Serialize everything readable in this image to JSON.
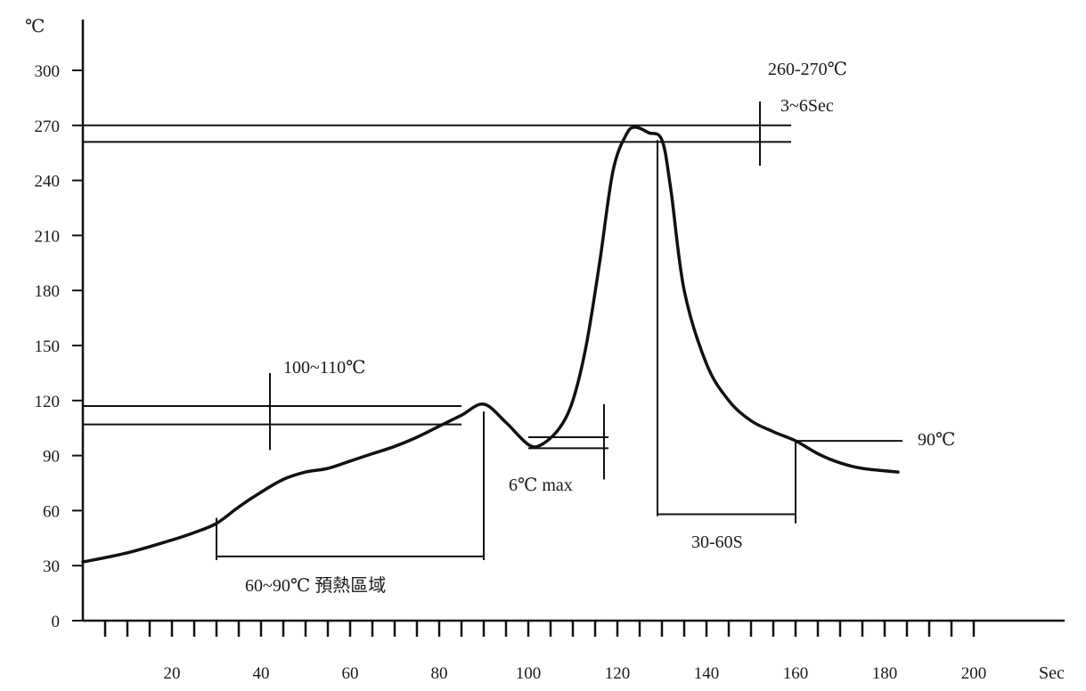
{
  "chart_data": {
    "type": "line",
    "title": "",
    "xlabel": "Sec",
    "ylabel": "℃",
    "xlim": [
      0,
      200
    ],
    "ylim": [
      0,
      300
    ],
    "x_ticks": [
      20,
      40,
      60,
      80,
      100,
      120,
      140,
      160,
      180,
      200
    ],
    "y_ticks": [
      0,
      30,
      60,
      90,
      120,
      150,
      180,
      210,
      240,
      270,
      300
    ],
    "x_minor_step": 5,
    "grid": false,
    "legend": "none",
    "line_color": "#111111",
    "series": [
      {
        "x": [
          0,
          10,
          20,
          25,
          30,
          35,
          40,
          45,
          50,
          55,
          60,
          65,
          70,
          75,
          80,
          85,
          90,
          95,
          100,
          103,
          107,
          110,
          113,
          116,
          119,
          122,
          124,
          127,
          130,
          132,
          135,
          140,
          145,
          150,
          155,
          160,
          165,
          170,
          175,
          183
        ],
        "y": [
          32,
          37,
          44,
          48,
          53,
          62,
          70,
          77,
          81,
          83,
          87,
          91,
          95,
          100,
          106,
          112,
          118,
          108,
          96,
          96,
          105,
          120,
          150,
          195,
          245,
          265,
          269,
          266,
          262,
          235,
          180,
          140,
          120,
          109,
          103,
          98,
          91,
          86,
          83,
          81
        ]
      }
    ],
    "annotations": [
      {
        "text": "260-270℃",
        "x": 158,
        "y": 300
      },
      {
        "text": "3~6Sec",
        "x": 157,
        "y": 285
      },
      {
        "text": "100~110℃",
        "x": 45,
        "y": 140
      },
      {
        "text": "6℃ max",
        "x": 95,
        "y": 75
      },
      {
        "text": "90℃",
        "x": 187,
        "y": 101
      },
      {
        "text": "30-60S",
        "x": 142,
        "y": 45
      },
      {
        "text": "60~90℃ 預熱區域",
        "x": 38,
        "y": 22
      }
    ]
  }
}
